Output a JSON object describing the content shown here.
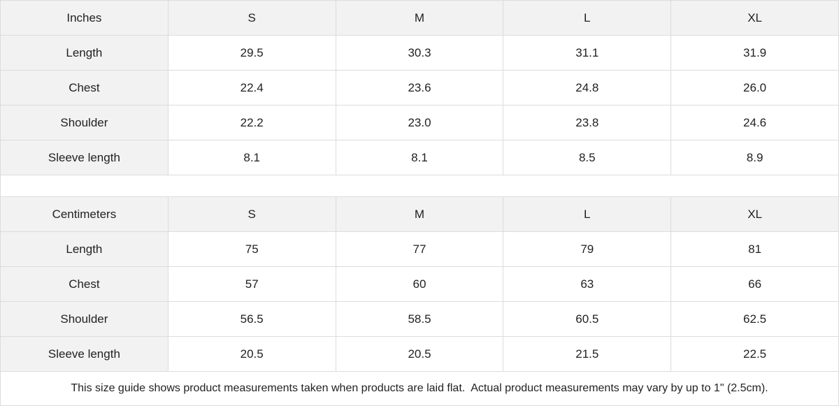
{
  "tables": [
    {
      "unit": "Inches",
      "sizes": [
        "S",
        "M",
        "L",
        "XL"
      ],
      "rows": [
        {
          "label": "Length",
          "values": [
            "29.5",
            "30.3",
            "31.1",
            "31.9"
          ]
        },
        {
          "label": "Chest",
          "values": [
            "22.4",
            "23.6",
            "24.8",
            "26.0"
          ]
        },
        {
          "label": "Shoulder",
          "values": [
            "22.2",
            "23.0",
            "23.8",
            "24.6"
          ]
        },
        {
          "label": "Sleeve length",
          "values": [
            "8.1",
            "8.1",
            "8.5",
            "8.9"
          ]
        }
      ]
    },
    {
      "unit": "Centimeters",
      "sizes": [
        "S",
        "M",
        "L",
        "XL"
      ],
      "rows": [
        {
          "label": "Length",
          "values": [
            "75",
            "77",
            "79",
            "81"
          ]
        },
        {
          "label": "Chest",
          "values": [
            "57",
            "60",
            "63",
            "66"
          ]
        },
        {
          "label": "Shoulder",
          "values": [
            "56.5",
            "58.5",
            "60.5",
            "62.5"
          ]
        },
        {
          "label": "Sleeve length",
          "values": [
            "20.5",
            "20.5",
            "21.5",
            "22.5"
          ]
        }
      ]
    }
  ],
  "note": "This size guide shows product measurements taken when products are laid flat.  Actual product measurements may vary by up to 1\" (2.5cm).",
  "colors": {
    "header_bg": "#f2f2f2",
    "border": "#dcdcdc"
  }
}
